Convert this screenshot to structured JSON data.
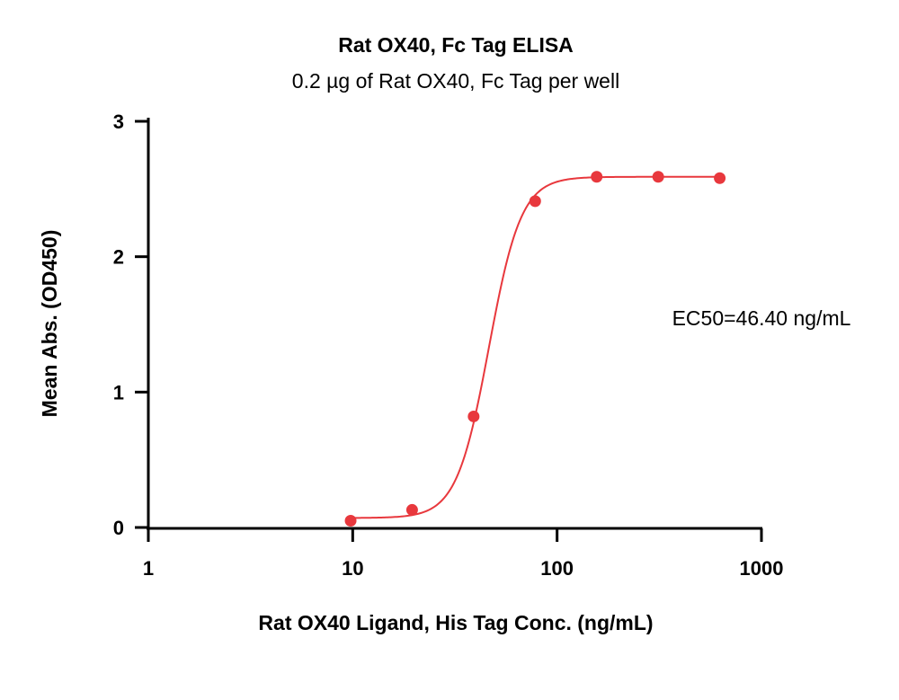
{
  "chart_data": {
    "type": "scatter",
    "title": "Rat OX40, Fc Tag ELISA",
    "subtitle": "0.2 µg of Rat OX40, Fc Tag per well",
    "xlabel": "Rat OX40 Ligand, His Tag Conc. (ng/mL)",
    "ylabel": "Mean Abs. (OD450)",
    "x_scale": "log",
    "xlim": [
      1,
      1000
    ],
    "ylim": [
      0,
      3
    ],
    "x_ticks": [
      1,
      10,
      100,
      1000
    ],
    "x_tick_labels": [
      "1",
      "10",
      "100",
      "1000"
    ],
    "y_ticks": [
      0,
      1,
      2,
      3
    ],
    "y_tick_labels": [
      "0",
      "1",
      "2",
      "3"
    ],
    "grid": false,
    "series": [
      {
        "color": "#e8383d",
        "x": [
          9.77,
          19.53,
          39.06,
          78.13,
          156.25,
          312.5,
          625
        ],
        "y": [
          0.05,
          0.13,
          0.82,
          2.41,
          2.59,
          2.59,
          2.58
        ],
        "fit": {
          "model": "4PL",
          "bottom": 0.07,
          "top": 2.59,
          "ec50": 46.4,
          "hill": 5.5,
          "x_range": [
            9.77,
            625
          ]
        }
      }
    ],
    "annotations": [
      {
        "text": "EC50=46.40 ng/mL"
      }
    ]
  }
}
